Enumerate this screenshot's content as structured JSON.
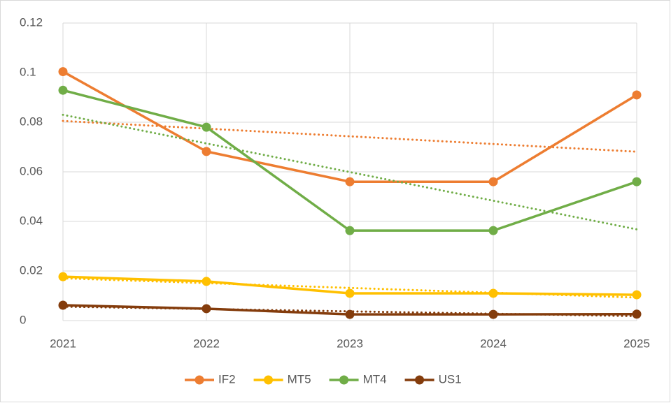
{
  "chart_data": {
    "type": "line",
    "x": [
      2021,
      2022,
      2023,
      2024,
      2025
    ],
    "xlim": [
      2021,
      2025
    ],
    "xticks": [
      2021,
      2022,
      2023,
      2024,
      2025
    ],
    "ylim": [
      0,
      0.12
    ],
    "yticks": [
      0,
      0.02,
      0.04,
      0.06,
      0.08,
      0.1,
      0.12
    ],
    "grid": true,
    "legend": "bottom",
    "trendline": "linear",
    "series": [
      {
        "name": "IF2",
        "color": "#ed7d31",
        "values": [
          0.1004,
          0.0682,
          0.056,
          0.056,
          0.091
        ]
      },
      {
        "name": "MT5",
        "color": "#ffc000",
        "values": [
          0.0177,
          0.0158,
          0.011,
          0.011,
          0.0104
        ]
      },
      {
        "name": "MT4",
        "color": "#70ad47",
        "values": [
          0.0929,
          0.078,
          0.0363,
          0.0363,
          0.056
        ]
      },
      {
        "name": "US1",
        "color": "#843c0c",
        "values": [
          0.0062,
          0.0048,
          0.0025,
          0.0025,
          0.0026
        ]
      }
    ]
  }
}
